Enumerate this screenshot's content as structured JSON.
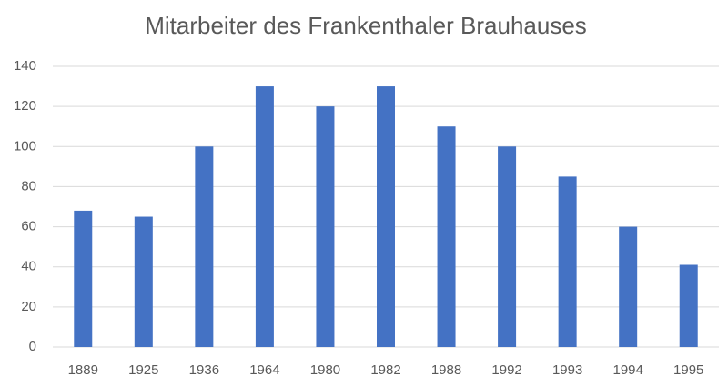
{
  "chart_data": {
    "type": "bar",
    "title": "Mitarbeiter des Frankenthaler Brauhauses",
    "categories": [
      "1889",
      "1925",
      "1936",
      "1964",
      "1980",
      "1982",
      "1988",
      "1992",
      "1993",
      "1994",
      "1995"
    ],
    "values": [
      68,
      65,
      100,
      130,
      120,
      130,
      110,
      100,
      85,
      60,
      41
    ],
    "color": "#4472c4",
    "ylim": [
      0,
      140
    ],
    "yticks": [
      0,
      20,
      40,
      60,
      80,
      100,
      120,
      140
    ],
    "grid": true
  }
}
